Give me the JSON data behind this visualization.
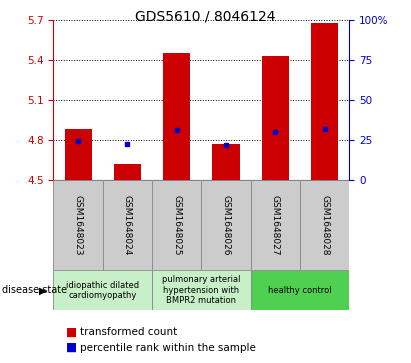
{
  "title": "GDS5610 / 8046124",
  "samples": [
    "GSM1648023",
    "GSM1648024",
    "GSM1648025",
    "GSM1648026",
    "GSM1648027",
    "GSM1648028"
  ],
  "bar_values": [
    4.88,
    4.62,
    5.45,
    4.77,
    5.43,
    5.68
  ],
  "blue_dot_values": [
    4.79,
    4.77,
    4.87,
    4.76,
    4.86,
    4.88
  ],
  "ymin": 4.5,
  "ymax": 5.7,
  "yticks": [
    4.5,
    4.8,
    5.1,
    5.4,
    5.7
  ],
  "y2min": 0,
  "y2max": 100,
  "y2ticks": [
    0,
    25,
    50,
    75,
    100
  ],
  "bar_color": "#cc0000",
  "dot_color": "#0000cc",
  "bar_bottom": 4.5,
  "disease_groups": [
    {
      "label": "idiopathic dilated\ncardiomyopathy",
      "start": 0,
      "end": 2,
      "color": "#c8f0c8"
    },
    {
      "label": "pulmonary arterial\nhypertension with\nBMPR2 mutation",
      "start": 2,
      "end": 4,
      "color": "#c8f0c8"
    },
    {
      "label": "healthy control",
      "start": 4,
      "end": 6,
      "color": "#50d050"
    }
  ],
  "disease_state_label": "disease state",
  "legend_red": "transformed count",
  "legend_blue": "percentile rank within the sample",
  "title_fontsize": 10,
  "tick_fontsize": 7.5,
  "sample_fontsize": 6.5,
  "disease_fontsize": 6.0,
  "legend_fontsize": 7.5
}
